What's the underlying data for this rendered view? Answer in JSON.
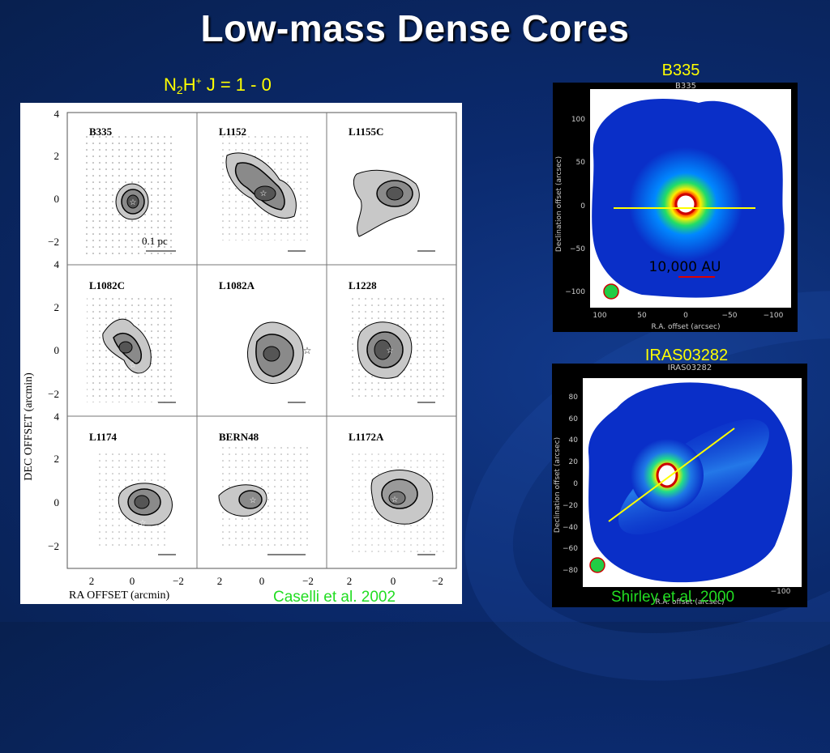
{
  "slide": {
    "title": "Low-mass Dense Cores",
    "n2h_label": {
      "n": "N",
      "sub": "2",
      "h": "H",
      "sup": "+",
      "rest": " J = 1 - 0"
    },
    "left_citation": "Caselli et al. 2002",
    "right_citation": "Shirley et al. 2000"
  },
  "contour_grid": {
    "y_ticks_top": [
      "4",
      "2",
      "0",
      "−2"
    ],
    "y_ticks_mid": [
      "4",
      "2",
      "0",
      "−2"
    ],
    "y_ticks_bot": [
      "4",
      "2",
      "0",
      "−2"
    ],
    "x_ticks": [
      "2",
      "0",
      "−2"
    ],
    "y_axis_label": "DEC OFFSET (arcmin)",
    "x_axis_label": "RA OFFSET (arcmin)",
    "scale_label": "0.1 pc",
    "cores": [
      "B335",
      "L1152",
      "L1155C",
      "L1082C",
      "L1082A",
      "L1228",
      "L1174",
      "BERN48",
      "L1172A"
    ]
  },
  "b335_map": {
    "label": "B335",
    "inner_title": "B335",
    "y_ticks": [
      "100",
      "50",
      "0",
      "−50",
      "−100"
    ],
    "x_ticks": [
      "100",
      "50",
      "0",
      "−50",
      "−100"
    ],
    "y_axis_label": "Declination  offset (arcsec)",
    "x_axis_label": "R.A.  offset (arcsec)",
    "scale_label": "10,000 AU"
  },
  "iras_map": {
    "label": "IRAS03282",
    "inner_title": "IRAS03282",
    "y_ticks": [
      "80",
      "60",
      "40",
      "20",
      "0",
      "−20",
      "−40",
      "−60",
      "−80"
    ],
    "x_ticks": [
      "−100"
    ],
    "y_axis_label": "Declination  offset (arcsec)",
    "x_axis_label": "R.A.  offset (arcsec)"
  },
  "colors": {
    "accent_yellow": "#ffff00",
    "citation_green": "#22dd22",
    "background": "#0b2a6e"
  }
}
